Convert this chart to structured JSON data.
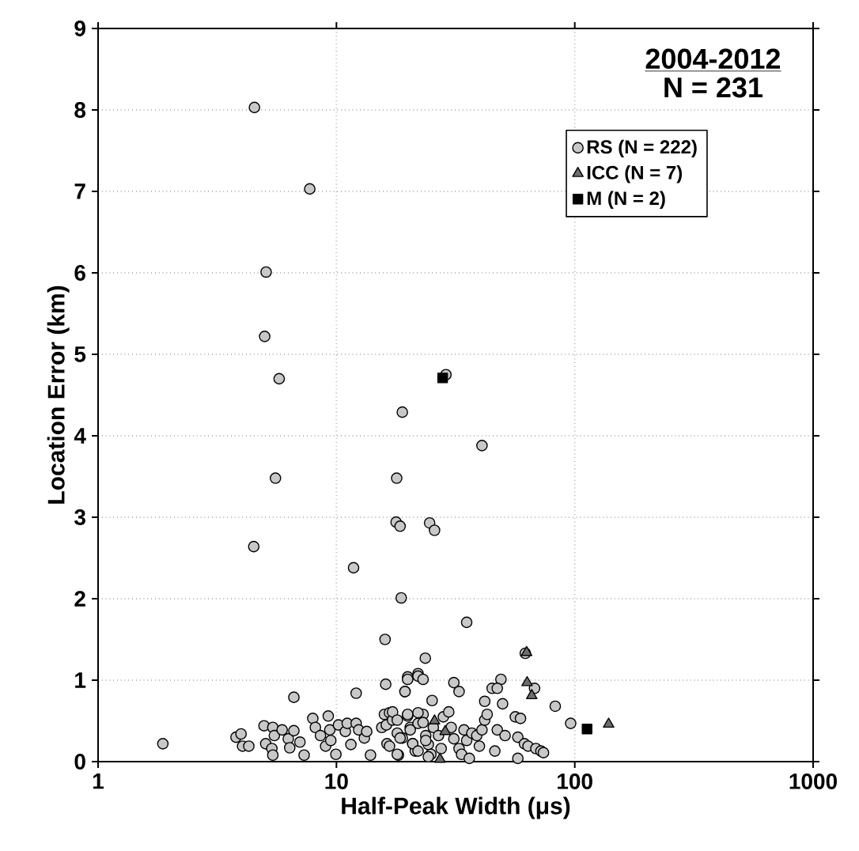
{
  "chart_data": {
    "type": "scatter",
    "title": "2004-2012",
    "subtitle": "N = 231",
    "xlabel": "Half-Peak Width (μs)",
    "ylabel": "Location Error (km)",
    "log": "x",
    "xlim": [
      1,
      1000
    ],
    "xticks": [
      1,
      10,
      100,
      1000
    ],
    "ylim": [
      0,
      9
    ],
    "yticks": [
      0,
      1,
      2,
      3,
      4,
      5,
      6,
      7,
      8,
      9
    ],
    "grid": true,
    "legend": "top right",
    "series": [
      {
        "name": "RS (N = 222)",
        "color": "#c8c8c8",
        "marker": "circle",
        "x": [
          4.53,
          7.73,
          5.07,
          5.0,
          5.75,
          28.8,
          18.9,
          40.8,
          5.55,
          17.9,
          17.8,
          18.5,
          24.6,
          25.8,
          4.5,
          11.8,
          18.7,
          35.2,
          1.87,
          6.63,
          16.0,
          12.1,
          16.1,
          23.6,
          19.9,
          22.0,
          19.4,
          62.0,
          67.8,
          49.0,
          45.0,
          47.3,
          82.8,
          96.1,
          3.79,
          3.98,
          4.04,
          4.29,
          4.97,
          5.41,
          5.49,
          5.05,
          5.36,
          5.41,
          5.92,
          6.28,
          6.37,
          6.63,
          7.03,
          7.32,
          7.96,
          8.16,
          8.57,
          9.01,
          9.24,
          9.38,
          9.47,
          9.95,
          10.2,
          10.9,
          11.1,
          11.5,
          12.1,
          12.4,
          13.1,
          13.4,
          13.9,
          15.5,
          15.9,
          16.2,
          16.7,
          16.3,
          17.2,
          18.0,
          18.2,
          18.9,
          19.9,
          20.4,
          20.9,
          21.4,
          22.0,
          23.1,
          23.7,
          24.3,
          24.9,
          25.2,
          17.2,
          18.0,
          19.9,
          22.0,
          23.1,
          20.4,
          18.5,
          16.7,
          18.0,
          20.9,
          22.0,
          23.7,
          24.3,
          25.5,
          26.8,
          27.5,
          28.1,
          29.6,
          30.3,
          31.1,
          32.7,
          33.5,
          34.3,
          35.2,
          37.0,
          36.1,
          38.8,
          39.8,
          40.8,
          41.9,
          42.9,
          46.2,
          47.3,
          49.8,
          51.0,
          56.3,
          57.7,
          59.2,
          61.5,
          63.7,
          68.7,
          72.1,
          73.9,
          57.7,
          41.9,
          19.9,
          22.0,
          23.1,
          31.1,
          32.7,
          19.4
        ],
        "values": [
          8.03,
          7.03,
          6.01,
          5.22,
          4.7,
          4.75,
          4.29,
          3.88,
          3.48,
          3.48,
          2.94,
          2.89,
          2.93,
          2.84,
          2.64,
          2.38,
          2.01,
          1.71,
          0.22,
          0.79,
          1.5,
          0.84,
          0.95,
          1.27,
          1.04,
          1.08,
          0.86,
          1.33,
          0.9,
          1.01,
          0.9,
          0.9,
          0.68,
          0.47,
          0.3,
          0.34,
          0.19,
          0.19,
          0.44,
          0.42,
          0.32,
          0.22,
          0.16,
          0.08,
          0.39,
          0.28,
          0.17,
          0.38,
          0.24,
          0.08,
          0.53,
          0.42,
          0.32,
          0.19,
          0.56,
          0.39,
          0.26,
          0.09,
          0.45,
          0.37,
          0.47,
          0.21,
          0.47,
          0.39,
          0.29,
          0.37,
          0.08,
          0.42,
          0.58,
          0.45,
          0.6,
          0.22,
          0.51,
          0.35,
          0.08,
          0.29,
          0.56,
          0.42,
          0.22,
          0.13,
          0.47,
          0.58,
          0.32,
          0.21,
          0.09,
          0.75,
          0.61,
          0.51,
          0.58,
          0.6,
          0.48,
          0.39,
          0.29,
          0.19,
          0.09,
          0.22,
          0.13,
          0.26,
          0.06,
          0.42,
          0.32,
          0.16,
          0.55,
          0.61,
          0.42,
          0.28,
          0.16,
          0.09,
          0.39,
          0.26,
          0.35,
          0.04,
          0.32,
          0.19,
          0.39,
          0.51,
          0.58,
          0.13,
          0.39,
          0.71,
          0.32,
          0.55,
          0.3,
          0.53,
          0.22,
          0.19,
          0.16,
          0.13,
          0.11,
          0.04,
          0.74,
          1.01,
          1.05,
          1.01,
          0.97,
          0.86,
          0.86
        ]
      },
      {
        "name": "ICC (N = 7)",
        "color": "#6e6e6e",
        "marker": "triangle",
        "x": [
          62.8,
          63.1,
          66.0,
          138.7,
          25.8,
          28.6,
          27.2
        ],
        "values": [
          1.34,
          0.97,
          0.81,
          0.46,
          0.5,
          0.37,
          0.03
        ]
      },
      {
        "name": "M (N = 2)",
        "color": "#000000",
        "marker": "square",
        "x": [
          27.9,
          112.6
        ],
        "values": [
          4.71,
          0.4
        ]
      }
    ]
  }
}
